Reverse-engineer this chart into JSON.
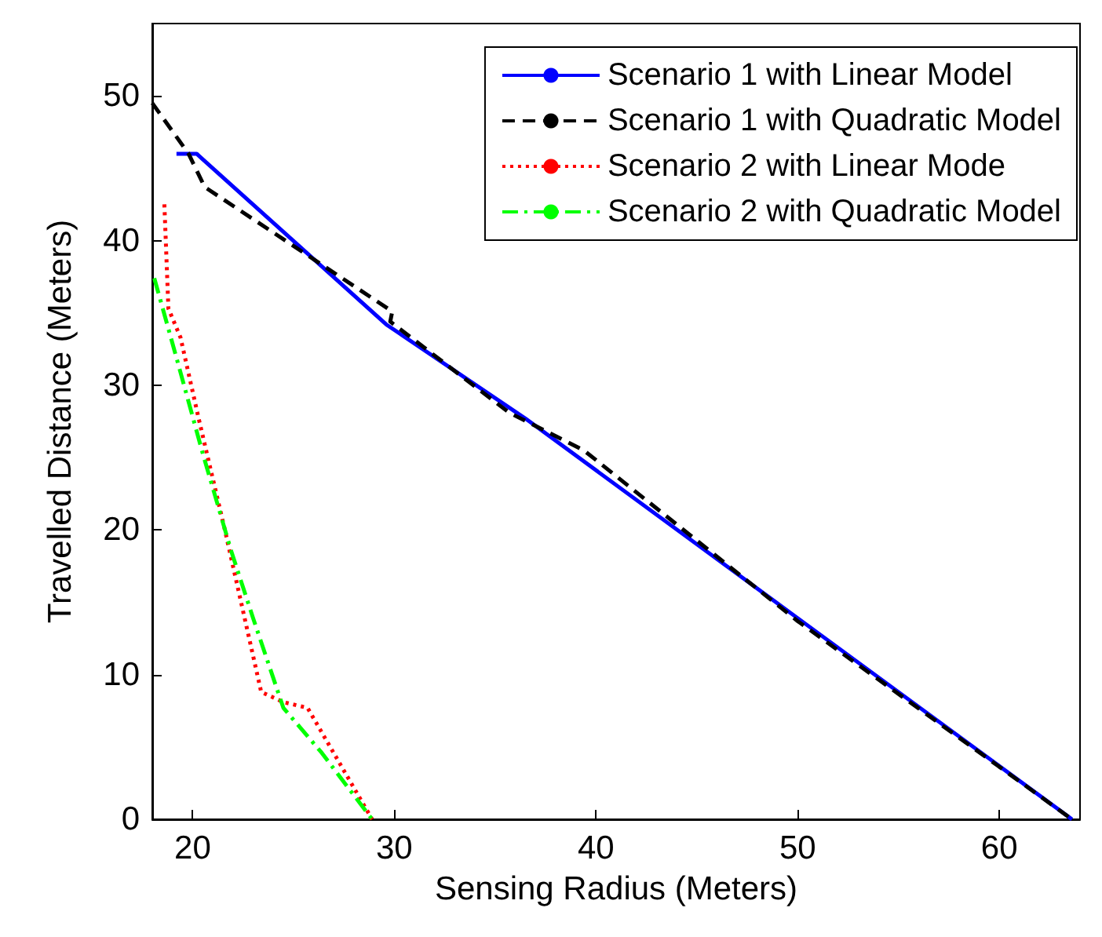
{
  "chart_data": {
    "type": "line",
    "xlabel": "Sensing Radius (Meters)",
    "ylabel": "Travelled Distance (Meters)",
    "xlim": [
      18,
      64
    ],
    "ylim": [
      0,
      55
    ],
    "xticks": [
      20,
      30,
      40,
      50,
      60
    ],
    "yticks": [
      0,
      10,
      20,
      30,
      40,
      50
    ],
    "grid": false,
    "legend": "top right",
    "marker": "none",
    "series": [
      {
        "name": "Scenario 1 with Linear Model",
        "color": "#0000ff",
        "line_style": "solid",
        "x": [
          19.2,
          20.2,
          29.6,
          36.5,
          63.6
        ],
        "values": [
          46,
          46,
          34.2,
          27.7,
          0
        ]
      },
      {
        "name": "Scenario 1 with Quadratic Model",
        "color": "#000000",
        "line_style": "dashed",
        "x": [
          18,
          19.8,
          20.6,
          29.9,
          29.8,
          35.7,
          39.4,
          50,
          63.6
        ],
        "values": [
          49.5,
          46,
          43.7,
          35.1,
          34.4,
          28.1,
          25.5,
          13.7,
          0
        ]
      },
      {
        "name": "Scenario 2 with Linear Mode",
        "color": "#ff0000",
        "line_style": "dotted",
        "x": [
          18.6,
          18.8,
          19.4,
          20.3,
          21.6,
          22.5,
          23.4,
          24.5,
          25.7,
          28.9
        ],
        "values": [
          42.5,
          35.3,
          33.3,
          27.7,
          20,
          14.4,
          8.8,
          8.1,
          7.7,
          0
        ]
      },
      {
        "name": "Scenario 2 with Quadratic Model",
        "color": "#00ff00",
        "line_style": "dashdot",
        "x": [
          18.1,
          19.2,
          20.5,
          21.9,
          23,
          24.5,
          26.4,
          28.9
        ],
        "values": [
          37.4,
          31.9,
          25.3,
          18.6,
          13.9,
          7.7,
          4.6,
          0
        ]
      }
    ]
  }
}
